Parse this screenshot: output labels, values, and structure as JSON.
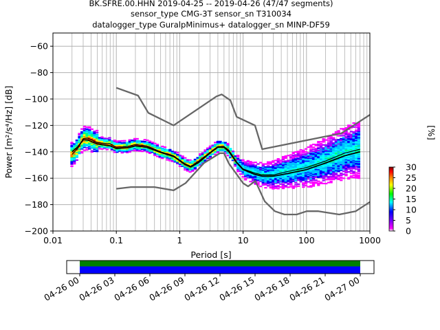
{
  "chart_data": {
    "type": "heatmap",
    "title_lines": [
      "BK.SFRE.00.HHN   2019-04-25 -- 2019-04-26  (47/47 segments)",
      "sensor_type CMG-3T sensor_sn T310034",
      "datalogger_type GuralpMinimus+ datalogger_sn MINP-DF59"
    ],
    "xlabel": "Period [s]",
    "ylabel": "Power [m²/s⁴/Hz] [dB]",
    "x_scale": "log",
    "xlim": [
      0.01,
      1000
    ],
    "ylim": [
      -200,
      -50
    ],
    "x_ticks": [
      "0.01",
      "0.1",
      "1",
      "10",
      "100",
      "1000"
    ],
    "y_ticks": [
      -60,
      -80,
      -100,
      -120,
      -140,
      -160,
      -180,
      -200
    ],
    "grid": true,
    "colorbar": {
      "label": "[%]",
      "ticks": [
        0,
        5,
        10,
        15,
        20,
        25,
        30
      ],
      "range": [
        0,
        30
      ],
      "colormap": [
        "#ffffff",
        "#ff00ff",
        "#7a00ff",
        "#0000ff",
        "#00ffff",
        "#00ff00",
        "#ffff00",
        "#ff8000",
        "#ff0000",
        "#800000"
      ]
    },
    "noise_model_high": {
      "period": [
        0.1,
        0.22,
        0.32,
        0.8,
        3.8,
        4.6,
        6.3,
        7.9,
        15.4,
        20,
        354.8,
        1000
      ],
      "db": [
        -91.5,
        -97.4,
        -110.5,
        -120,
        -98,
        -96.5,
        -101,
        -113.5,
        -120,
        -138,
        -126,
        -112
      ]
    },
    "noise_model_low": {
      "period": [
        0.1,
        0.17,
        0.4,
        0.8,
        1.24,
        2.4,
        4.3,
        5,
        6,
        10,
        12,
        15.6,
        21.9,
        31.6,
        45,
        70,
        101,
        154,
        328,
        600,
        1000
      ],
      "db": [
        -168,
        -166.7,
        -166.7,
        -169.2,
        -163.7,
        -148.6,
        -141.1,
        -141.1,
        -149,
        -163.8,
        -166.2,
        -162.1,
        -177.5,
        -185,
        -187.5,
        -187.5,
        -185,
        -185,
        -187.5,
        -185,
        -178
      ]
    },
    "mode_curve": {
      "period": [
        0.02,
        0.025,
        0.03,
        0.035,
        0.05,
        0.08,
        0.1,
        0.15,
        0.2,
        0.3,
        0.5,
        0.8,
        1.2,
        1.5,
        2,
        3,
        4,
        5,
        6,
        8,
        10,
        15,
        20,
        30,
        50,
        100,
        200,
        400,
        700
      ],
      "db": [
        -142,
        -137,
        -130,
        -129.5,
        -133,
        -134,
        -136.5,
        -136,
        -134.5,
        -135.5,
        -140,
        -143,
        -149,
        -151,
        -147,
        -140.5,
        -136,
        -136,
        -139,
        -148,
        -153,
        -156,
        -157.5,
        -157.5,
        -155,
        -152,
        -147,
        -141,
        -138
      ]
    },
    "mean_curve": {
      "period": [
        0.02,
        0.025,
        0.03,
        0.035,
        0.05,
        0.08,
        0.1,
        0.15,
        0.2,
        0.3,
        0.5,
        0.8,
        1.2,
        1.5,
        2,
        3,
        4,
        5,
        6,
        8,
        10,
        15,
        20,
        30,
        50,
        100,
        200,
        400,
        700
      ],
      "db": [
        -140,
        -136,
        -131,
        -131,
        -134,
        -135.5,
        -137.5,
        -137,
        -135.5,
        -136.5,
        -140.5,
        -143.5,
        -149.5,
        -151.5,
        -148,
        -141,
        -136.5,
        -136.5,
        -140,
        -148.5,
        -153.5,
        -157,
        -158.5,
        -158.5,
        -156.5,
        -153.5,
        -148.5,
        -143,
        -140
      ]
    },
    "timeline": {
      "tick_labels": [
        "04-26 00",
        "04-26 03",
        "04-26 06",
        "04-26 09",
        "04-26 12",
        "04-26 15",
        "04-26 18",
        "04-26 21",
        "04-27 00"
      ],
      "data_availability_color": "#008000",
      "psd_coverage_color": "#0000ff"
    }
  }
}
